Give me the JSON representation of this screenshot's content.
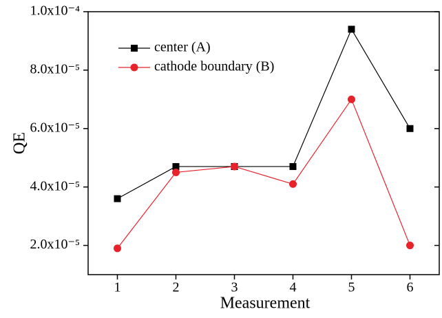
{
  "chart_data": {
    "type": "line",
    "x_label": "Measurement",
    "y_label": "QE",
    "x": [
      1,
      2,
      3,
      4,
      5,
      6
    ],
    "series": [
      {
        "name": "center (A)",
        "color": "#000000",
        "marker": "square",
        "values": [
          3.6e-05,
          4.7e-05,
          4.7e-05,
          4.7e-05,
          9.4e-05,
          6e-05
        ]
      },
      {
        "name": "cathode boundary (B)",
        "color": "#e8222a",
        "marker": "circle",
        "values": [
          1.9e-05,
          4.5e-05,
          4.7e-05,
          4.1e-05,
          7e-05,
          2e-05
        ]
      }
    ],
    "xlim": [
      0.5,
      6.5
    ],
    "xticks": [
      1,
      2,
      3,
      4,
      5,
      6
    ],
    "ylim": [
      1e-05,
      0.0001
    ],
    "yticks": [
      {
        "value": 2e-05,
        "label": "2.0x10⁻⁵"
      },
      {
        "value": 4e-05,
        "label": "4.0x10⁻⁵"
      },
      {
        "value": 6e-05,
        "label": "6.0x10⁻⁵"
      },
      {
        "value": 8e-05,
        "label": "8.0x10⁻⁵"
      },
      {
        "value": 0.0001,
        "label": "1.0x10⁻⁴"
      }
    ],
    "legend": "upper left",
    "grid": false
  }
}
